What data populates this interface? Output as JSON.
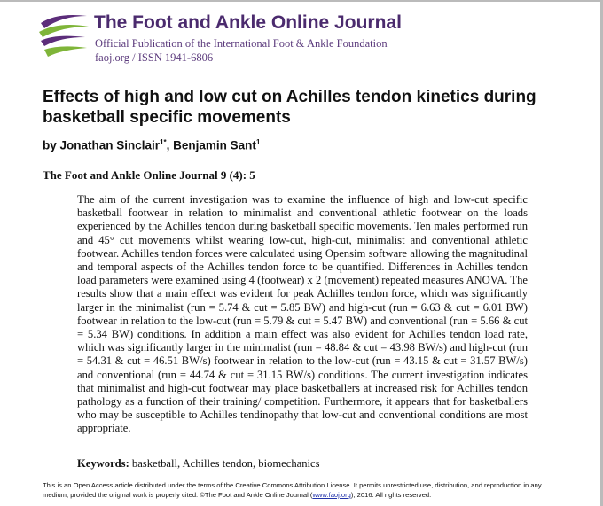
{
  "header": {
    "journal_name": "The Foot and Ankle Online Journal",
    "subtitle": "Official Publication of the International Foot & Ankle Foundation",
    "issn_line": "faoj.org / ISSN 1941-6806"
  },
  "article": {
    "title": "Effects of high and low cut on Achilles tendon kinetics during basketball specific movements",
    "byline_prefix": "by",
    "authors": [
      {
        "name": "Jonathan Sinclair",
        "affiliation": "1*"
      },
      {
        "name": "Benjamin Sant",
        "affiliation": "1"
      }
    ],
    "author_separator": ",",
    "citation": "The Foot and Ankle Online Journal 9 (4): 5",
    "abstract": "The aim of the current investigation was to examine the influence of high and low-cut specific basketball footwear in relation to minimalist and conventional athletic footwear on the loads experienced by the Achilles tendon during basketball specific movements. Ten males performed run and 45° cut movements whilst wearing low-cut, high-cut, minimalist and conventional athletic footwear. Achilles tendon forces were calculated using Opensim software allowing the magnitudinal and temporal aspects of the Achilles tendon force to be quantified.  Differences in Achilles tendon load parameters were examined using 4 (footwear) x 2 (movement) repeated measures ANOVA. The results show that a main effect was evident for peak Achilles tendon force, which was significantly larger in the minimalist (run = 5.74 & cut = 5.85 BW) and high-cut (run = 6.63 & cut = 6.01 BW) footwear in relation to the low-cut (run = 5.79 & cut = 5.47 BW) and conventional (run = 5.66 & cut = 5.34 BW) conditions. In addition a main effect was also evident for Achilles tendon load rate, which was significantly larger in the minimalist (run = 48.84 & cut = 43.98 BW/s) and high-cut (run = 54.31 & cut = 46.51 BW/s) footwear in relation to the low-cut (run = 43.15 & cut = 31.57 BW/s) and conventional (run = 44.74 & cut = 31.15 BW/s) conditions. The current investigation indicates that minimalist and high-cut footwear may place basketballers at increased risk for Achilles tendon pathology as a function of their training/ competition. Furthermore, it appears that for basketballers who may be susceptible to Achilles tendinopathy that low-cut and conventional conditions are most appropriate.",
    "keywords_label": "Keywords:",
    "keywords": "basketball, Achilles tendon, biomechanics"
  },
  "footer": {
    "text_before": "This is an Open Access article distributed under the terms of the Creative Commons Attribution License.  It permits unrestricted use, distribution, and reproduction in any medium, provided the original work is properly cited. ©The Foot and Ankle Online Journal (",
    "link": "www.faoj.org",
    "text_after": "), 2016. All rights reserved."
  }
}
